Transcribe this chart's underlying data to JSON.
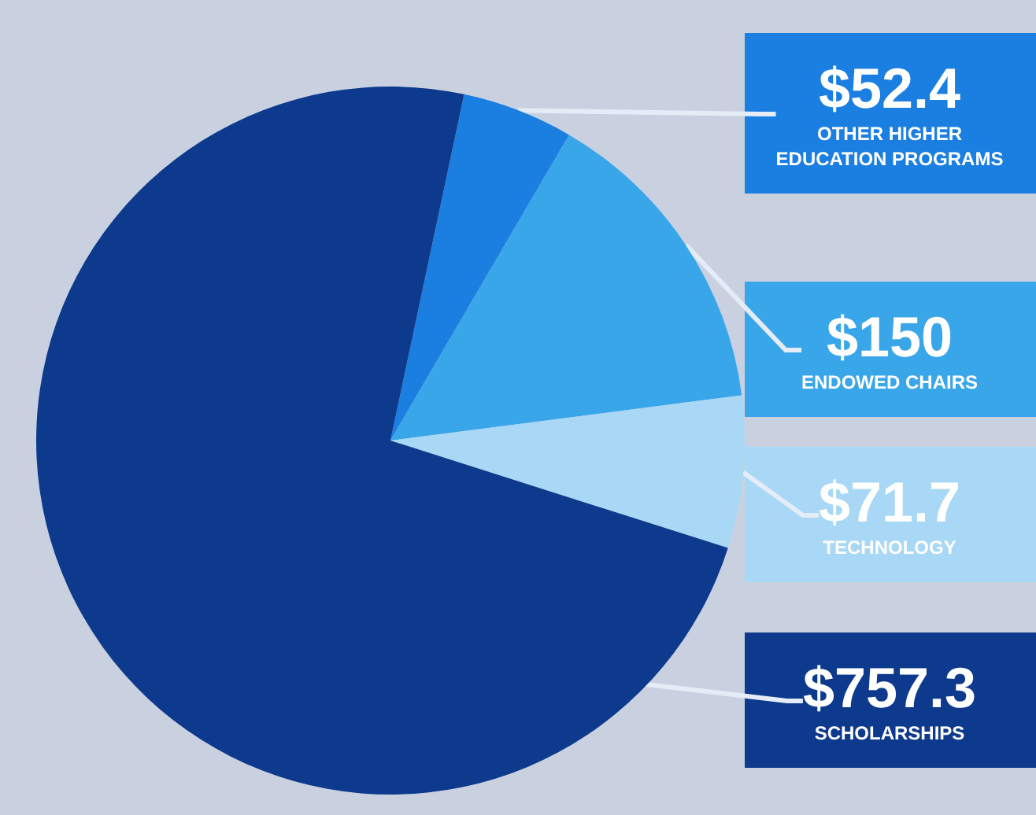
{
  "chart_data": {
    "type": "pie",
    "categories": [
      "OTHER HIGHER EDUCATION PROGRAMS",
      "ENDOWED CHAIRS",
      "TECHNOLOGY",
      "SCHOLARSHIPS"
    ],
    "values": [
      52.4,
      150,
      71.7,
      757.3
    ],
    "value_labels": [
      "$52.4",
      "$150",
      "$71.7",
      "$757.3"
    ],
    "colors": [
      "#1a7fe0",
      "#3aa6ea",
      "#a8d8f5",
      "#0d3a8c"
    ],
    "legend": false
  }
}
